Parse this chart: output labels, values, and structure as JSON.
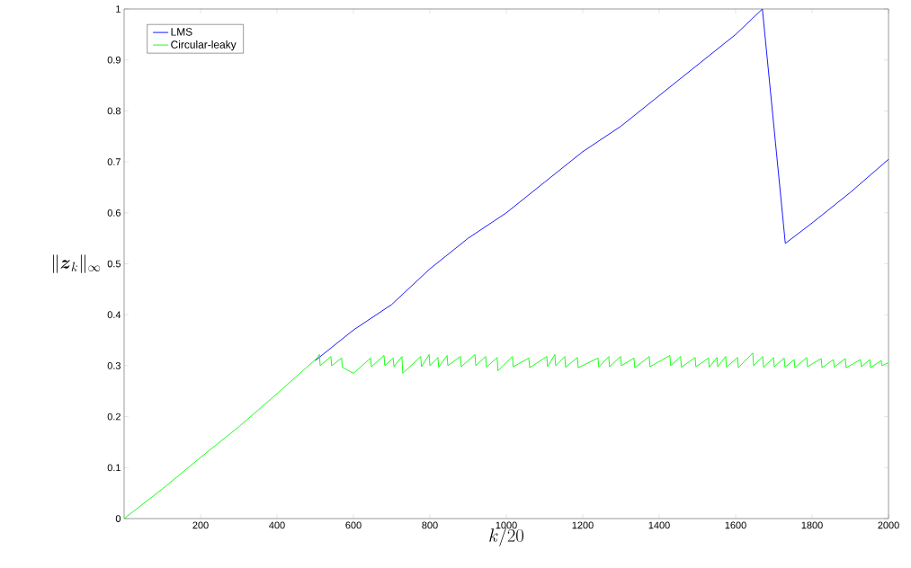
{
  "chart_data": {
    "type": "line",
    "xlabel": "k/20",
    "ylabel": "\\|\\boldsymbol{z}_k\\|_\\infty",
    "xlim": [
      0,
      2000
    ],
    "ylim": [
      0,
      1
    ],
    "xticks": [
      200,
      400,
      600,
      800,
      1000,
      1200,
      1400,
      1600,
      1800,
      2000
    ],
    "yticks": [
      0,
      0.1,
      0.2,
      0.3,
      0.4,
      0.5,
      0.6,
      0.7,
      0.8,
      0.9,
      1
    ],
    "legend": "top left",
    "grid": false,
    "marker": "none",
    "line_style": "solid",
    "series": [
      {
        "name": "LMS",
        "color": "#0000ff",
        "x": [
          500,
          600,
          700,
          800,
          900,
          1000,
          1100,
          1200,
          1300,
          1400,
          1500,
          1600,
          1670,
          1730,
          1800,
          1900,
          2000
        ],
        "values": [
          0.31,
          0.37,
          0.42,
          0.49,
          0.55,
          0.6,
          0.66,
          0.72,
          0.77,
          0.83,
          0.89,
          0.95,
          1.0,
          0.54,
          0.58,
          0.64,
          0.705
        ]
      },
      {
        "name": "Circular-leaky",
        "color": "#00ff00",
        "x": [
          0,
          100,
          200,
          300,
          400,
          505,
          511,
          513,
          541,
          543,
          569,
          571,
          600,
          645,
          647,
          680,
          682,
          704,
          706,
          727,
          729,
          776,
          778,
          798,
          800,
          821,
          823,
          845,
          847,
          880,
          882,
          918,
          920,
          946,
          948,
          976,
          978,
          1016,
          1018,
          1059,
          1061,
          1106,
          1108,
          1127,
          1129,
          1153,
          1155,
          1186,
          1188,
          1240,
          1242,
          1268,
          1270,
          1299,
          1301,
          1334,
          1336,
          1374,
          1376,
          1428,
          1430,
          1456,
          1458,
          1494,
          1496,
          1529,
          1531,
          1551,
          1553,
          1574,
          1576,
          1605,
          1607,
          1645,
          1647,
          1671,
          1673,
          1699,
          1701,
          1727,
          1729,
          1753,
          1755,
          1786,
          1788,
          1824,
          1826,
          1856,
          1858,
          1887,
          1889,
          1927,
          1929,
          1951,
          1953,
          1981,
          1983,
          2000
        ],
        "values": [
          0,
          0.058,
          0.12,
          0.18,
          0.245,
          0.315,
          0.322,
          0.3,
          0.318,
          0.3,
          0.315,
          0.297,
          0.285,
          0.315,
          0.298,
          0.32,
          0.3,
          0.315,
          0.298,
          0.318,
          0.285,
          0.318,
          0.298,
          0.322,
          0.3,
          0.316,
          0.297,
          0.32,
          0.3,
          0.318,
          0.298,
          0.322,
          0.3,
          0.318,
          0.297,
          0.316,
          0.29,
          0.318,
          0.298,
          0.315,
          0.296,
          0.318,
          0.298,
          0.322,
          0.3,
          0.318,
          0.297,
          0.316,
          0.296,
          0.315,
          0.297,
          0.318,
          0.298,
          0.318,
          0.3,
          0.315,
          0.296,
          0.318,
          0.298,
          0.32,
          0.3,
          0.318,
          0.297,
          0.316,
          0.298,
          0.315,
          0.297,
          0.316,
          0.298,
          0.318,
          0.297,
          0.316,
          0.296,
          0.325,
          0.3,
          0.318,
          0.297,
          0.316,
          0.298,
          0.315,
          0.297,
          0.312,
          0.296,
          0.316,
          0.298,
          0.314,
          0.296,
          0.312,
          0.297,
          0.314,
          0.296,
          0.312,
          0.298,
          0.312,
          0.296,
          0.31,
          0.3,
          0.306
        ]
      }
    ]
  }
}
